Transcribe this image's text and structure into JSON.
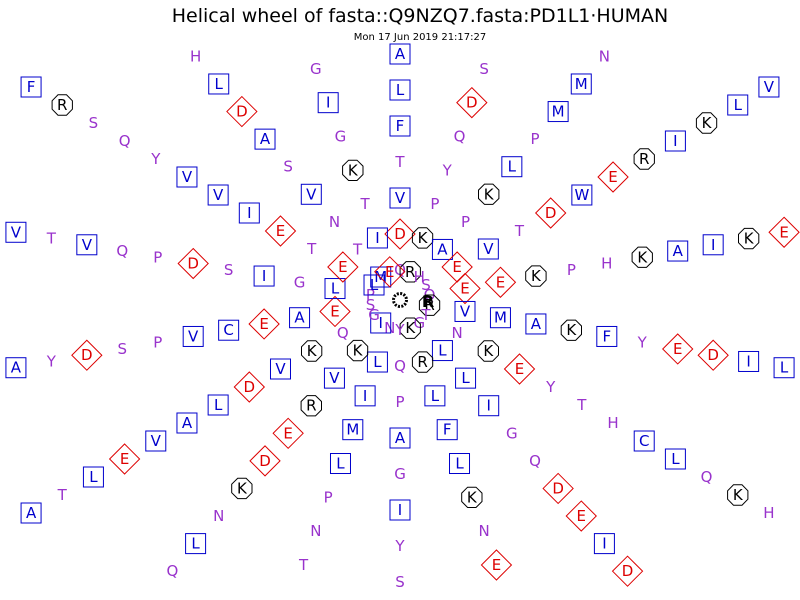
{
  "header": {
    "title": "Helical wheel of fasta::Q9NZQ7.fasta:PD1L1·HUMAN",
    "timestamp": "Mon 17 Jun 2019 21:17:27"
  },
  "colors": {
    "hydrophobic": "#0000cc",
    "polar": "#9933cc",
    "charged": "#dd0000",
    "basic": "#000000",
    "hub": "#000000"
  },
  "hub_label": "R",
  "spokes": [
    [
      "Q",
      "D",
      "V",
      "T",
      "F",
      "L",
      "A",
      "M",
      "I",
      "V",
      "A",
      "D"
    ],
    [
      "R",
      "K",
      "P",
      "Y",
      "Q",
      "D",
      "S",
      "T",
      "L",
      "E",
      "A",
      "F"
    ],
    [
      "H",
      "A",
      "P",
      "K",
      "L",
      "P",
      "M",
      "M",
      "N",
      "R",
      "F",
      "L"
    ],
    [
      "S",
      "E",
      "V",
      "T",
      "D",
      "W",
      "E",
      "R",
      "I",
      "K",
      "L",
      "V"
    ],
    [
      "Q",
      "E",
      "E",
      "K",
      "P",
      "H",
      "K",
      "A",
      "I",
      "K",
      "E",
      "L"
    ],
    [
      "R",
      "V",
      "M",
      "A",
      "K",
      "F",
      "Y",
      "E",
      "D",
      "I",
      "L",
      "V"
    ],
    [
      "T",
      "N",
      "K",
      "E",
      "Y",
      "T",
      "H",
      "C",
      "L",
      "Q",
      "K",
      "H"
    ],
    [
      "G",
      "L",
      "L",
      "I",
      "G",
      "Q",
      "D",
      "E",
      "I",
      "D",
      "V",
      "Y"
    ],
    [
      "K",
      "R",
      "L",
      "F",
      "L",
      "K",
      "N",
      "E",
      "G",
      "V",
      "E",
      "R"
    ],
    [
      "Y",
      "Q",
      "P",
      "A",
      "G",
      "I",
      "Y",
      "S",
      "L",
      "E",
      "Q",
      "L"
    ],
    [
      "N",
      "L",
      "I",
      "M",
      "L",
      "P",
      "N",
      "T",
      "P",
      "A",
      "Y",
      "G"
    ],
    [
      "I",
      "K",
      "V",
      "R",
      "E",
      "D",
      "K",
      "N",
      "L",
      "Q",
      "C",
      "S"
    ],
    [
      "G",
      "Q",
      "K",
      "V",
      "D",
      "L",
      "A",
      "V",
      "E",
      "L",
      "T",
      "A"
    ],
    [
      "S",
      "E",
      "A",
      "E",
      "C",
      "V",
      "P",
      "S",
      "D",
      "Y",
      "A",
      "T"
    ],
    [
      "P",
      "L",
      "G",
      "I",
      "S",
      "D",
      "P",
      "Q",
      "V",
      "T",
      "V",
      "Y"
    ],
    [
      "L",
      "E",
      "T",
      "E",
      "I",
      "V",
      "V",
      "Y",
      "Q",
      "S",
      "R",
      "F"
    ],
    [
      "M",
      "T",
      "N",
      "V",
      "S",
      "A",
      "D",
      "L",
      "H",
      "S",
      "L",
      "N"
    ],
    [
      "E",
      "I",
      "T",
      "K",
      "G",
      "I",
      "G",
      "R",
      "K",
      "H",
      "L",
      "W"
    ]
  ]
}
